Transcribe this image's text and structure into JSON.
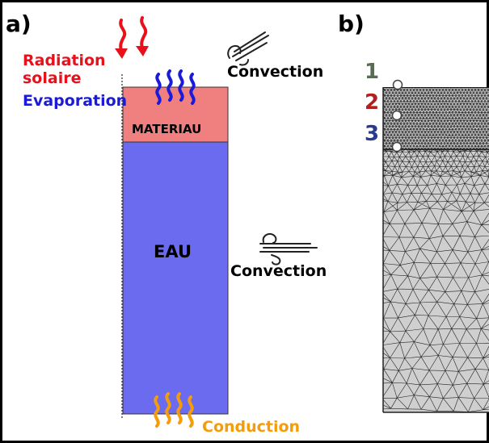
{
  "panel_a": {
    "label": "a)",
    "radiation_line1": "Radiation",
    "radiation_line2": "solaire",
    "evaporation": "Evaporation",
    "convection_top": "Convection",
    "materiau": "MATERIAU",
    "eau": "EAU",
    "convection_side": "Convection",
    "conduction": "Conduction"
  },
  "panel_b": {
    "label": "b)",
    "points": [
      {
        "label": "1",
        "color": "#5a6b55"
      },
      {
        "label": "2",
        "color": "#b02020"
      },
      {
        "label": "3",
        "color": "#2a3a8c"
      }
    ]
  },
  "colors": {
    "radiation": "#e8101a",
    "evaporation": "#1a1ad8",
    "conduction": "#f59c0a",
    "materiau_fill": "#f08080",
    "eau_fill": "#6b6bf0",
    "mesh_fill": "#cfcfcf",
    "mesh_line": "#222222"
  }
}
